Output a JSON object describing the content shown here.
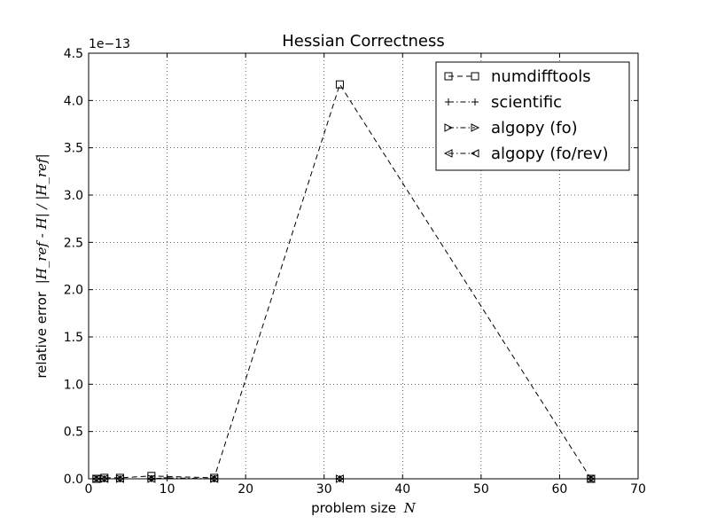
{
  "chart_data": {
    "type": "line",
    "title": "Hessian Correctness",
    "xlabel": "problem size",
    "xlabel_math": "N",
    "ylabel": "relative error",
    "ylabel_math": "|H_ref - H| / |H_ref|",
    "offset_label": "1e−13",
    "xlim": [
      0,
      70
    ],
    "ylim": [
      0,
      4.5
    ],
    "xticks": [
      0,
      10,
      20,
      30,
      40,
      50,
      60,
      70
    ],
    "xtick_labels": [
      "0",
      "10",
      "20",
      "30",
      "40",
      "50",
      "60",
      "70"
    ],
    "yticks": [
      0.0,
      0.5,
      1.0,
      1.5,
      2.0,
      2.5,
      3.0,
      3.5,
      4.0,
      4.5
    ],
    "ytick_labels": [
      "0.0",
      "0.5",
      "1.0",
      "1.5",
      "2.0",
      "2.5",
      "3.0",
      "3.5",
      "4.0",
      "4.5"
    ],
    "grid": true,
    "legend_position": "top-right",
    "series": [
      {
        "name": "numdifftools",
        "marker": "square",
        "linestyle": "dashed",
        "x": [
          1,
          2,
          4,
          8,
          16,
          32,
          64
        ],
        "y": [
          0,
          0.01,
          0.01,
          0.03,
          0.01,
          4.17,
          0
        ]
      },
      {
        "name": "scientific",
        "marker": "plus",
        "linestyle": "dashdot",
        "x": [
          1,
          2,
          4,
          8,
          10,
          16,
          32,
          64
        ],
        "y": [
          0,
          0,
          0,
          0,
          0.01,
          0,
          0,
          0
        ]
      },
      {
        "name": "algopy (fo)",
        "marker": "triangle-right",
        "linestyle": "dashdot",
        "x": [
          1,
          2,
          4,
          8,
          16,
          32,
          64
        ],
        "y": [
          0,
          0,
          0,
          0,
          0,
          0,
          0
        ]
      },
      {
        "name": "algopy (fo/rev)",
        "marker": "triangle-left",
        "linestyle": "dashdot",
        "x": [
          1,
          2,
          4,
          8,
          16,
          32,
          64
        ],
        "y": [
          0,
          0,
          0,
          0,
          0,
          0,
          0
        ]
      }
    ]
  }
}
